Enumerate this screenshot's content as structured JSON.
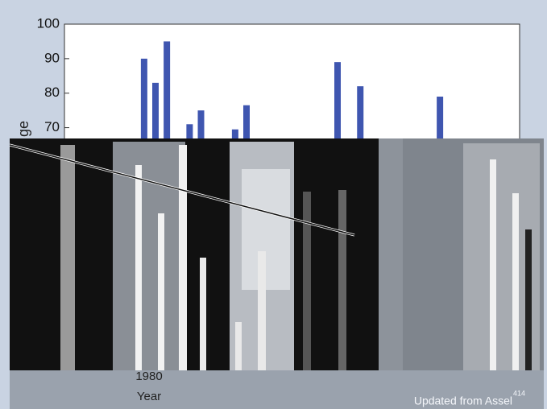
{
  "chart_data": {
    "type": "bar",
    "y_label": "ge",
    "x_label": "Year",
    "x_tick_text": "1980",
    "caption": "Updated from Assel",
    "caption_ref": "414",
    "x": [
      1980,
      1981,
      1982,
      1984,
      1985,
      1988,
      1989,
      1997,
      1999,
      2006
    ],
    "values": [
      90,
      83,
      95,
      71,
      75,
      69.5,
      76.5,
      89,
      82,
      79
    ],
    "color": "#3f56b0",
    "xlim": [
      1973,
      2013
    ],
    "ylim": [
      65,
      100
    ],
    "yticks": [
      70,
      80,
      90,
      100
    ]
  }
}
